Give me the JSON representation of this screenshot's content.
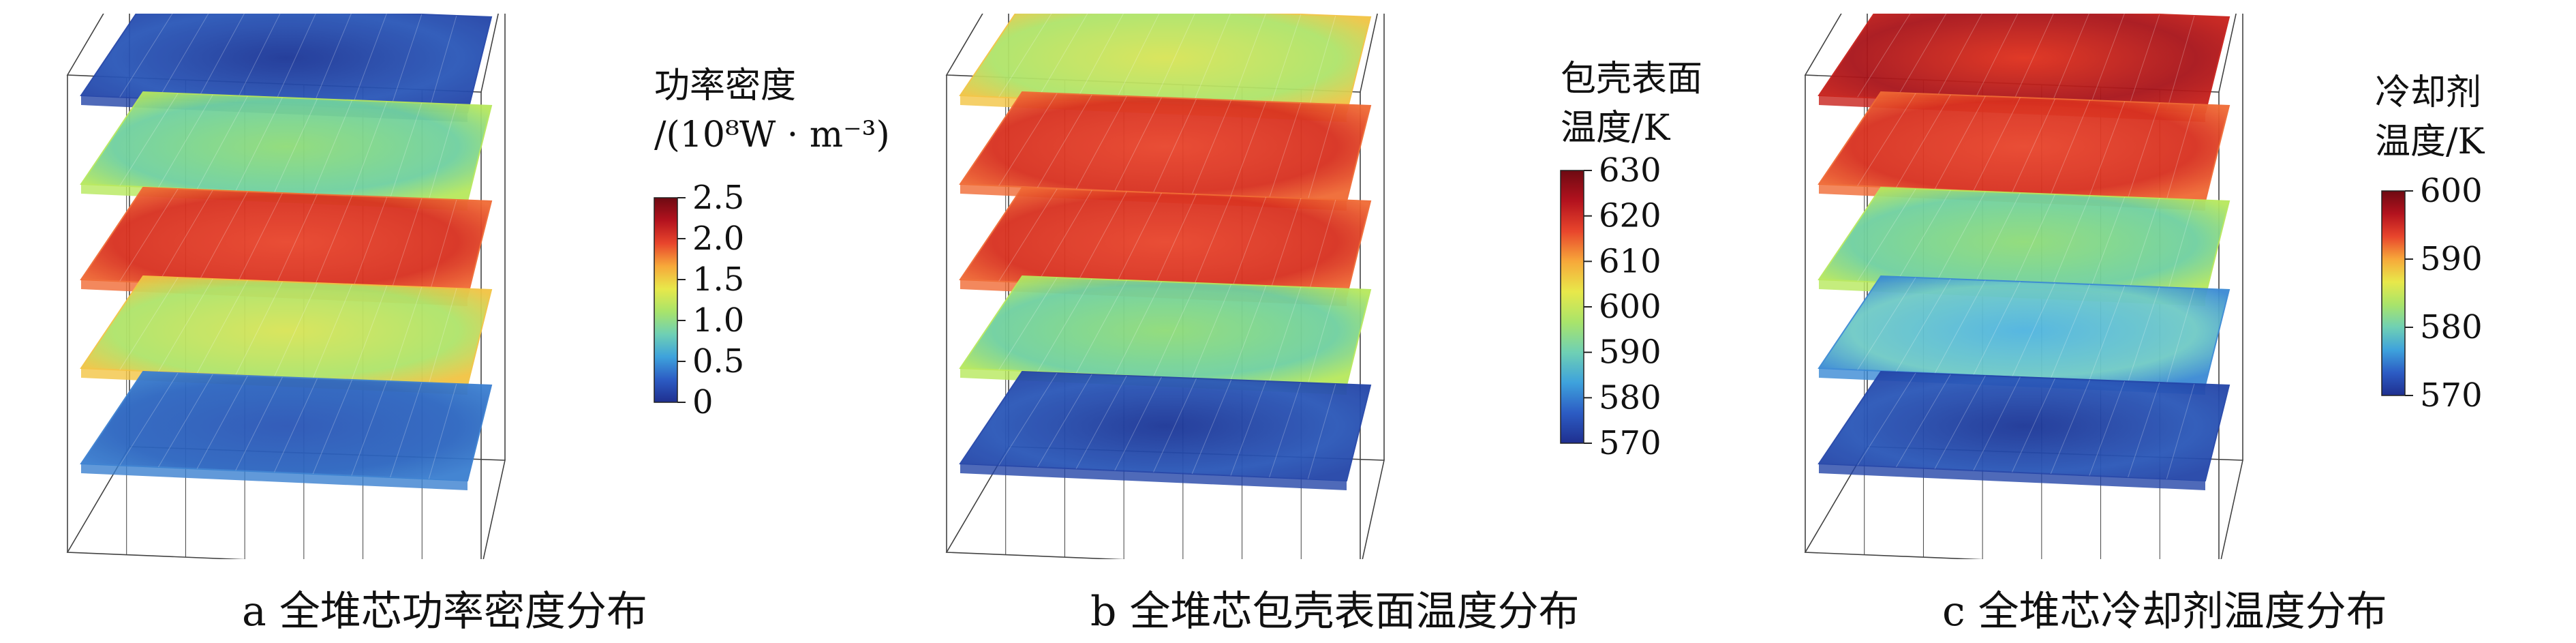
{
  "panels": [
    {
      "id": "a",
      "caption": "a 全堆芯功率密度分布",
      "colorbar": {
        "title_lines": [
          "功率密度",
          "/(10⁸W · m⁻³)"
        ],
        "ticks": [
          "2.5",
          "2.0",
          "1.5",
          "1.0",
          "0.5",
          "0"
        ]
      },
      "layers": [
        "dark-blue",
        "green",
        "red",
        "yellow-orange",
        "blue"
      ]
    },
    {
      "id": "b",
      "caption": "b 全堆芯包壳表面温度分布",
      "colorbar": {
        "title_lines": [
          "包壳表面",
          "温度/K"
        ],
        "ticks": [
          "630",
          "620",
          "610",
          "600",
          "590",
          "580",
          "570"
        ]
      },
      "layers": [
        "yellow-orange",
        "red",
        "red",
        "green",
        "dark-blue"
      ]
    },
    {
      "id": "c",
      "caption": "c 全堆芯冷却剂温度分布",
      "colorbar": {
        "title_lines": [
          "冷却剂",
          "温度/K"
        ],
        "ticks": [
          "600",
          "590",
          "580",
          "570"
        ]
      },
      "layers": [
        "deep-red",
        "red",
        "green",
        "cyan-blue",
        "dark-blue"
      ]
    }
  ]
}
